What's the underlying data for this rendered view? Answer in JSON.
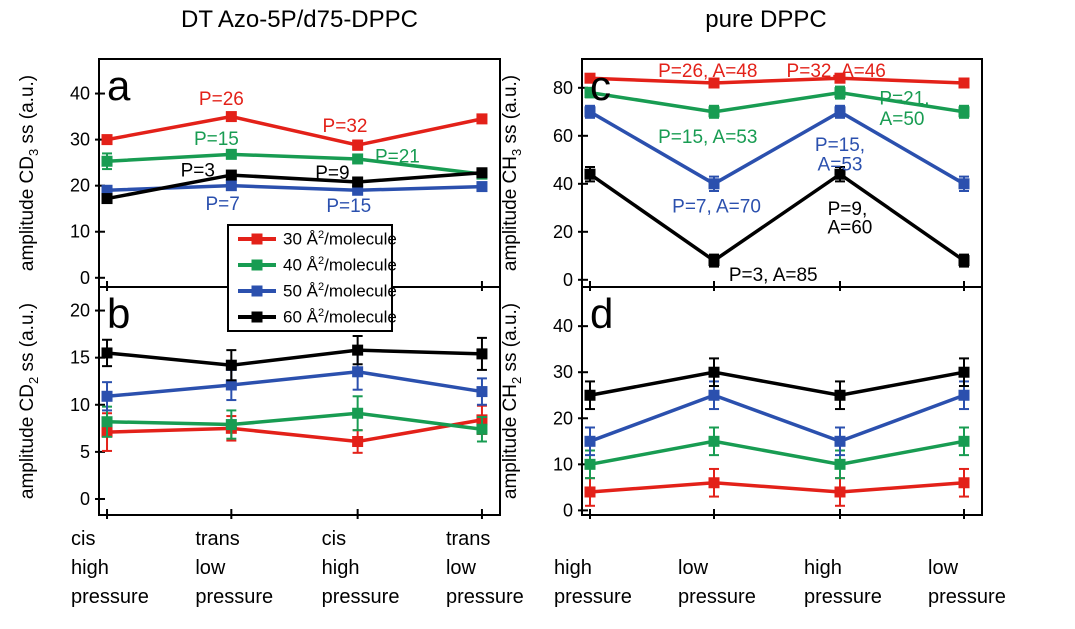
{
  "colors": {
    "red": "#e32119",
    "green": "#189c52",
    "blue": "#2b50ae",
    "black": "#000000",
    "axis": "#000000",
    "background": "#ffffff"
  },
  "legend": {
    "items": [
      {
        "label_pre": "30 Å",
        "label_sup": "2",
        "label_post": "/molecule",
        "color_key": "red"
      },
      {
        "label_pre": "40 Å",
        "label_sup": "2",
        "label_post": "/molecule",
        "color_key": "green"
      },
      {
        "label_pre": "50 Å",
        "label_sup": "2",
        "label_post": "/molecule",
        "color_key": "blue"
      },
      {
        "label_pre": "60 Å",
        "label_sup": "2",
        "label_post": "/molecule",
        "color_key": "black"
      }
    ]
  },
  "chart_data": [
    {
      "panel": "a",
      "type": "line",
      "title": "DT Azo-5P/d75-DPPC",
      "ylabel_pre": "amplitude CD",
      "ylabel_sub": "3",
      "ylabel_post": " ss (a.u.)",
      "yticks": [
        0,
        10,
        20,
        30,
        40
      ],
      "ylim": [
        -2,
        47.5
      ],
      "x_positions": [
        0.02,
        0.33,
        0.645,
        0.955
      ],
      "categories": [
        [
          "cis",
          "high",
          "pressure"
        ],
        [
          "trans",
          "low",
          "pressure"
        ],
        [
          "cis",
          "high",
          "pressure"
        ],
        [
          "trans",
          "low",
          "pressure"
        ]
      ],
      "show_x_labels": false,
      "series": [
        {
          "name": "30 Å2/molecule",
          "color_key": "red",
          "values": [
            30,
            35,
            28.8,
            34.5
          ],
          "errors": [
            0.8,
            0.8,
            1.0,
            0.8
          ]
        },
        {
          "name": "40 Å2/molecule",
          "color_key": "green",
          "values": [
            25.3,
            26.8,
            25.8,
            22.5
          ],
          "errors": [
            1.7,
            0.8,
            0.8,
            0.8
          ]
        },
        {
          "name": "50 Å2/molecule",
          "color_key": "blue",
          "values": [
            19,
            20,
            19,
            19.8
          ],
          "errors": [
            0.8,
            0.8,
            0.8,
            0.8
          ]
        },
        {
          "name": "60 Å2/molecule",
          "color_key": "black",
          "values": [
            17.2,
            22.3,
            20.8,
            22.8
          ],
          "errors": [
            0.8,
            0.8,
            0.8,
            0.8
          ]
        }
      ],
      "annotations": [
        {
          "text": "P=26",
          "color_key": "red",
          "cat_x": 0.92,
          "y": 39.0
        },
        {
          "text": "P=32",
          "color_key": "red",
          "cat_x": 1.9,
          "y": 33.2
        },
        {
          "text": "P=15",
          "color_key": "green",
          "cat_x": 0.88,
          "y": 30.3
        },
        {
          "text": "P=21",
          "color_key": "green",
          "cat_x": 2.32,
          "y": 26.5
        },
        {
          "text": "P=3",
          "color_key": "black",
          "cat_x": 0.73,
          "y": 23.5
        },
        {
          "text": "P=9",
          "color_key": "black",
          "cat_x": 1.8,
          "y": 23.0
        },
        {
          "text": "P=7",
          "color_key": "blue",
          "cat_x": 0.93,
          "y": 16.2
        },
        {
          "text": "P=15",
          "color_key": "blue",
          "cat_x": 1.93,
          "y": 15.8
        }
      ]
    },
    {
      "panel": "b",
      "type": "line",
      "title": "",
      "ylabel_pre": "amplitude CD",
      "ylabel_sub": "2",
      "ylabel_post": " ss (a.u.)",
      "yticks": [
        0,
        5,
        10,
        15,
        20
      ],
      "ylim": [
        -1.7,
        22.5
      ],
      "x_positions": [
        0.02,
        0.33,
        0.645,
        0.955
      ],
      "categories": [
        [
          "cis",
          "high",
          "pressure"
        ],
        [
          "trans",
          "low",
          "pressure"
        ],
        [
          "cis",
          "high",
          "pressure"
        ],
        [
          "trans",
          "low",
          "pressure"
        ]
      ],
      "show_x_labels": true,
      "series": [
        {
          "name": "30 Å2/molecule",
          "color_key": "red",
          "values": [
            7.1,
            7.5,
            6.1,
            8.4
          ],
          "errors": [
            2.0,
            1.3,
            1.2,
            1.5
          ]
        },
        {
          "name": "40 Å2/molecule",
          "color_key": "green",
          "values": [
            8.2,
            7.9,
            9.1,
            7.4
          ],
          "errors": [
            1.6,
            1.5,
            1.8,
            1.3
          ]
        },
        {
          "name": "50 Å2/molecule",
          "color_key": "blue",
          "values": [
            10.9,
            12.1,
            13.5,
            11.4
          ],
          "errors": [
            1.5,
            1.6,
            1.9,
            1.4
          ]
        },
        {
          "name": "60 Å2/molecule",
          "color_key": "black",
          "values": [
            15.5,
            14.2,
            15.8,
            15.4
          ],
          "errors": [
            1.4,
            1.6,
            1.5,
            1.7
          ]
        }
      ],
      "annotations": []
    },
    {
      "panel": "c",
      "type": "line",
      "title": "pure DPPC",
      "ylabel_pre": "amplitude CH",
      "ylabel_sub": "3",
      "ylabel_post": " ss (a.u.)",
      "yticks": [
        0,
        20,
        40,
        60,
        80
      ],
      "ylim": [
        -3,
        92
      ],
      "x_positions": [
        0.02,
        0.33,
        0.645,
        0.955
      ],
      "categories": [
        [
          "high",
          "pressure"
        ],
        [
          "low",
          "pressure"
        ],
        [
          "high",
          "pressure"
        ],
        [
          "low",
          "pressure"
        ]
      ],
      "show_x_labels": false,
      "series": [
        {
          "name": "30 Å2/molecule",
          "color_key": "red",
          "values": [
            84,
            82,
            84,
            82
          ],
          "errors": [
            1.5,
            1.5,
            1.5,
            1.5
          ]
        },
        {
          "name": "40 Å2/molecule",
          "color_key": "green",
          "values": [
            78,
            70,
            78,
            70
          ],
          "errors": [
            2.0,
            2.5,
            2.5,
            2.5
          ]
        },
        {
          "name": "50 Å2/molecule",
          "color_key": "blue",
          "values": [
            70,
            40,
            70,
            40
          ],
          "errors": [
            2.5,
            3.0,
            2.5,
            3.0
          ]
        },
        {
          "name": "60 Å2/molecule",
          "color_key": "black",
          "values": [
            44,
            8,
            44,
            8
          ],
          "errors": [
            3.0,
            2.5,
            3.0,
            2.5
          ]
        }
      ],
      "annotations": [
        {
          "text": "P=26, A=48",
          "color_key": "red",
          "cat_x": 0.95,
          "y": 87.5
        },
        {
          "text": "P=32, A=46",
          "color_key": "red",
          "cat_x": 1.97,
          "y": 87.5
        },
        {
          "text": "P=15, A=53",
          "color_key": "green",
          "cat_x": 0.95,
          "y": 60.0
        },
        {
          "text": "P=21,",
          "color_key": "green",
          "cat_x": 2.52,
          "y": 76.0
        },
        {
          "text": "A=50",
          "color_key": "green",
          "cat_x": 2.5,
          "y": 67.5
        },
        {
          "text": "P=7, A=70",
          "color_key": "blue",
          "cat_x": 1.02,
          "y": 31.0
        },
        {
          "text": "P=15,",
          "color_key": "blue",
          "cat_x": 2.0,
          "y": 56.5
        },
        {
          "text": "A=53",
          "color_key": "blue",
          "cat_x": 2.0,
          "y": 48.5
        },
        {
          "text": "P=9,",
          "color_key": "black",
          "cat_x": 2.06,
          "y": 30.0
        },
        {
          "text": "A=60",
          "color_key": "black",
          "cat_x": 2.08,
          "y": 22.3
        },
        {
          "text": "P=3, A=85",
          "color_key": "black",
          "cat_x": 1.47,
          "y": 2.5
        }
      ]
    },
    {
      "panel": "d",
      "type": "line",
      "title": "",
      "ylabel_pre": "amplitude CH",
      "ylabel_sub": "2",
      "ylabel_post": " ss (a.u.)",
      "yticks": [
        0,
        10,
        20,
        30,
        40
      ],
      "ylim": [
        -1,
        48.5
      ],
      "x_positions": [
        0.02,
        0.33,
        0.645,
        0.955
      ],
      "categories": [
        [
          "high",
          "pressure"
        ],
        [
          "low",
          "pressure"
        ],
        [
          "high",
          "pressure"
        ],
        [
          "low",
          "pressure"
        ]
      ],
      "show_x_labels": true,
      "series": [
        {
          "name": "30 Å2/molecule",
          "color_key": "red",
          "values": [
            4,
            6,
            4,
            6
          ],
          "errors": [
            3,
            3,
            3,
            3
          ]
        },
        {
          "name": "40 Å2/molecule",
          "color_key": "green",
          "values": [
            10,
            15,
            10,
            15
          ],
          "errors": [
            3,
            3,
            3,
            3
          ]
        },
        {
          "name": "50 Å2/molecule",
          "color_key": "blue",
          "values": [
            15,
            25,
            15,
            25
          ],
          "errors": [
            3,
            3,
            3,
            3
          ]
        },
        {
          "name": "60 Å2/molecule",
          "color_key": "black",
          "values": [
            25,
            30,
            25,
            30
          ],
          "errors": [
            3,
            3,
            3,
            3
          ]
        }
      ],
      "annotations": []
    }
  ]
}
